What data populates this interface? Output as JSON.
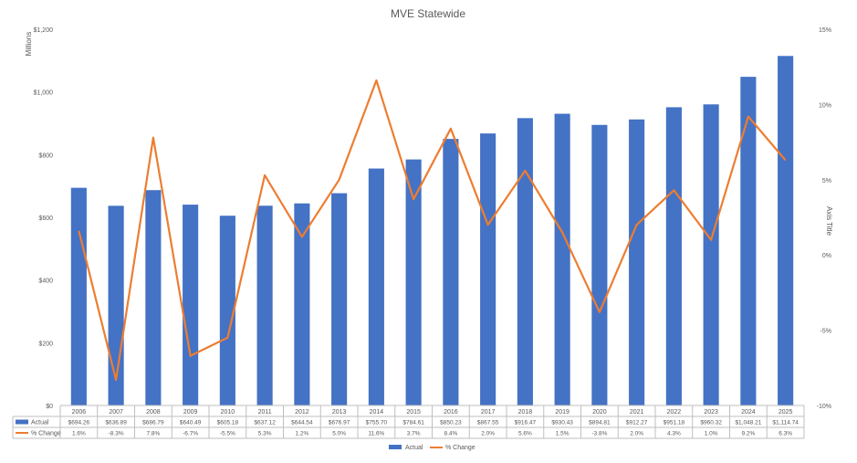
{
  "chart_data": {
    "type": "bar",
    "title": "MVE Statewide",
    "ylabel_left": "Millions",
    "ylabel_right": "Axis Title",
    "ylim_left": [
      0,
      1200
    ],
    "ylim_right": [
      -10,
      15
    ],
    "left_ticks": [
      "$0",
      "$200",
      "$400",
      "$600",
      "$800",
      "$1,000",
      "$1,200"
    ],
    "right_ticks": [
      "-10%",
      "-5%",
      "0%",
      "5%",
      "10%",
      "15%"
    ],
    "categories": [
      "2006",
      "2007",
      "2008",
      "2009",
      "2010",
      "2011",
      "2012",
      "2013",
      "2014",
      "2015",
      "2016",
      "2017",
      "2018",
      "2019",
      "2020",
      "2021",
      "2022",
      "2023",
      "2024",
      "2025"
    ],
    "series": [
      {
        "name": "Actual",
        "kind": "bar",
        "axis": "left",
        "color": "#4472C4",
        "values": [
          694.26,
          636.89,
          686.79,
          640.49,
          605.18,
          637.12,
          644.54,
          676.97,
          755.7,
          784.61,
          850.23,
          867.55,
          916.47,
          930.43,
          894.81,
          912.27,
          951.18,
          960.32,
          1048.21,
          1114.74
        ],
        "table_labels": [
          "$694.26",
          "$636.89",
          "$686.79",
          "$640.49",
          "$605.18",
          "$637.12",
          "$644.54",
          "$676.97",
          "$755.70",
          "$784.61",
          "$850.23",
          "$867.55",
          "$916.47",
          "$930.43",
          "$894.81",
          "$912.27",
          "$951.18",
          "$960.32",
          "$1,048.21",
          "$1,114.74"
        ]
      },
      {
        "name": "% Change",
        "kind": "line",
        "axis": "right",
        "color": "#ED7D31",
        "values": [
          1.6,
          -8.3,
          7.8,
          -6.7,
          -5.5,
          5.3,
          1.2,
          5.0,
          11.6,
          3.7,
          8.4,
          2.0,
          5.6,
          1.5,
          -3.8,
          2.0,
          4.3,
          1.0,
          9.2,
          6.3
        ],
        "table_labels": [
          "1.6%",
          "-8.3%",
          "7.8%",
          "-6.7%",
          "-5.5%",
          "5.3%",
          "1.2%",
          "5.0%",
          "11.6%",
          "3.7%",
          "8.4%",
          "2.0%",
          "5.6%",
          "1.5%",
          "-3.8%",
          "2.0%",
          "4.3%",
          "1.0%",
          "9.2%",
          "6.3%"
        ]
      }
    ],
    "legend": [
      "Actual",
      "% Change"
    ],
    "legend_position": "bottom",
    "gridlines": false,
    "data_table": true
  }
}
